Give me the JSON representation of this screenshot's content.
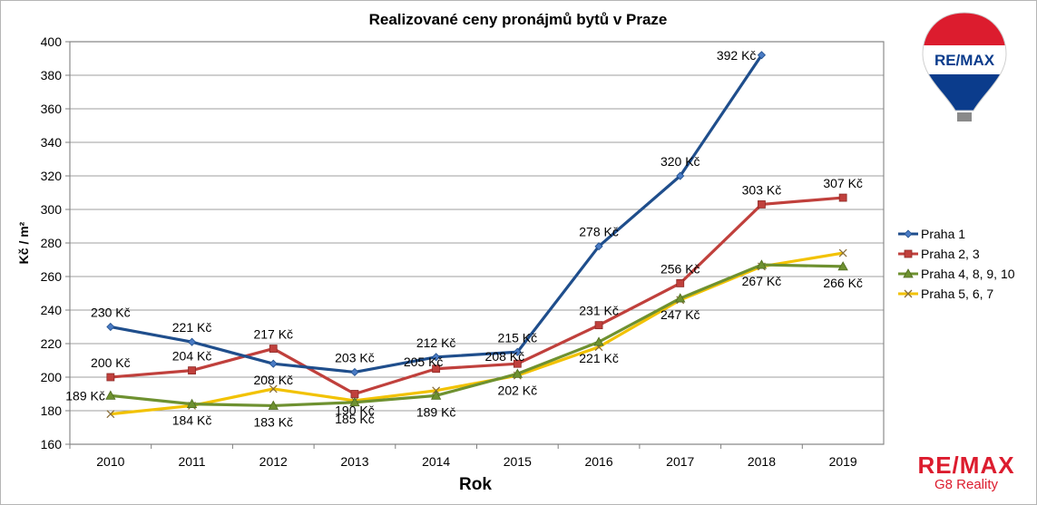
{
  "chart_data": {
    "type": "line",
    "title": "Realizované ceny pronájmů bytů v Praze",
    "xlabel": "Rok",
    "ylabel": "Kč / m²",
    "categories": [
      "2010",
      "2011",
      "2012",
      "2013",
      "2014",
      "2015",
      "2016",
      "2017",
      "2018",
      "2019"
    ],
    "ylim": [
      160,
      400
    ],
    "yticks": [
      "160",
      "180",
      "200",
      "220",
      "240",
      "260",
      "280",
      "300",
      "320",
      "340",
      "360",
      "380",
      "400"
    ],
    "grid": true,
    "legend_position": "right",
    "series": [
      {
        "name": "Praha 1",
        "color": "#1f4e8c",
        "marker": "diamond",
        "values": [
          230,
          221,
          208,
          203,
          212,
          215,
          278,
          320,
          392,
          null
        ],
        "labels": [
          "230 Kč",
          "221 Kč",
          "208 Kč",
          "203 Kč",
          "212 Kč",
          "215 Kč",
          "278 Kč",
          "320 Kč",
          "392 Kč",
          ""
        ]
      },
      {
        "name": "Praha 2, 3",
        "color": "#c0403c",
        "marker": "square",
        "values": [
          200,
          204,
          217,
          190,
          205,
          208,
          231,
          256,
          303,
          307
        ],
        "labels": [
          "200 Kč",
          "204 Kč",
          "217 Kč",
          "190 Kč",
          "205 Kč",
          "208 Kč",
          "231 Kč",
          "256 Kč",
          "303 Kč",
          "307 Kč"
        ]
      },
      {
        "name": "Praha 4, 8, 9, 10",
        "color": "#6e9130",
        "marker": "triangle",
        "values": [
          189,
          184,
          183,
          185,
          189,
          202,
          221,
          247,
          267,
          266
        ],
        "labels": [
          "189 Kč",
          "184 Kč",
          "183 Kč",
          "185 Kč",
          "189 Kč",
          "202 Kč",
          "221 Kč",
          "247 Kč",
          "267 Kč",
          "266 Kč"
        ]
      },
      {
        "name": "Praha 5, 6, 7",
        "color": "#f2c200",
        "marker": "x",
        "values": [
          178,
          183,
          193,
          186,
          192,
          201,
          218,
          246,
          266,
          274
        ],
        "labels": [
          "",
          "",
          "",
          "",
          "",
          "",
          "",
          "",
          "",
          ""
        ]
      }
    ]
  },
  "brand": {
    "name": "RE/MAX",
    "sub": "G8 Reality",
    "balloon_text": "RE/MAX"
  }
}
